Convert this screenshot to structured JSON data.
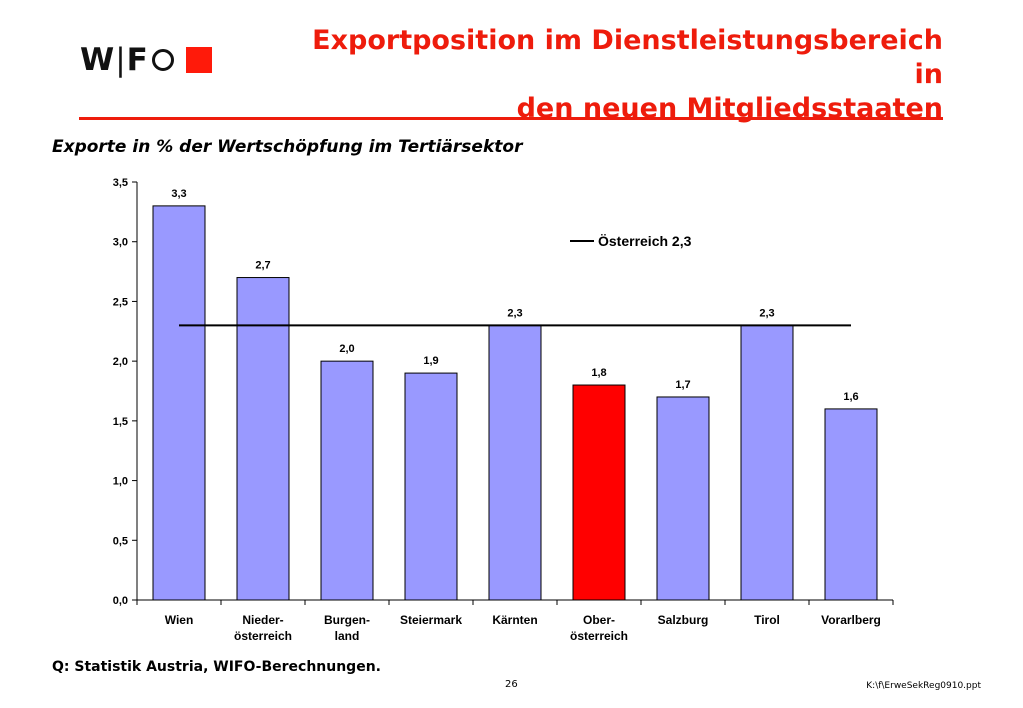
{
  "header": {
    "logo": "WIFO",
    "title_line1": "Exportposition im Dienstleistungsbereich in",
    "title_line2": "den neuen Mitgliedsstaaten"
  },
  "subtitle": "Exporte in % der Wertschöpfung im Tertiärsektor",
  "chart_data": {
    "type": "bar",
    "categories": [
      [
        "Wien"
      ],
      [
        "Nieder-",
        "österreich"
      ],
      [
        "Burgen-",
        "land"
      ],
      [
        "Steiermark"
      ],
      [
        "Kärnten"
      ],
      [
        "Ober-",
        "österreich"
      ],
      [
        "Salzburg"
      ],
      [
        "Tirol"
      ],
      [
        "Vorarlberg"
      ]
    ],
    "values": [
      3.3,
      2.7,
      2.0,
      1.9,
      2.3,
      1.8,
      1.7,
      2.3,
      1.6
    ],
    "value_labels": [
      "3,3",
      "2,7",
      "2,0",
      "1,9",
      "2,3",
      "1,8",
      "1,7",
      "2,3",
      "1,6"
    ],
    "bar_colors": [
      "#9999ff",
      "#9999ff",
      "#9999ff",
      "#9999ff",
      "#9999ff",
      "#ff0000",
      "#9999ff",
      "#9999ff",
      "#9999ff"
    ],
    "yticks": [
      0,
      0.5,
      1.0,
      1.5,
      2.0,
      2.5,
      3.0,
      3.5
    ],
    "ytick_labels": [
      "0,0",
      "0,5",
      "1,0",
      "1,5",
      "2,0",
      "2,5",
      "3,0",
      "3,5"
    ],
    "ylim": [
      0,
      3.5
    ],
    "reference_line": {
      "value": 2.3,
      "label": "Österreich 2,3",
      "color": "#000000"
    },
    "legend_position": "top-right",
    "grid": false
  },
  "footer": {
    "source": "Q: Statistik Austria, WIFO-Berechnungen.",
    "page_number": "26",
    "file_path": "K:\\f\\ErweSekReg0910.ppt"
  },
  "colors": {
    "accent": "#ee1c0c",
    "bar": "#9999ff",
    "highlight": "#ff0000"
  }
}
